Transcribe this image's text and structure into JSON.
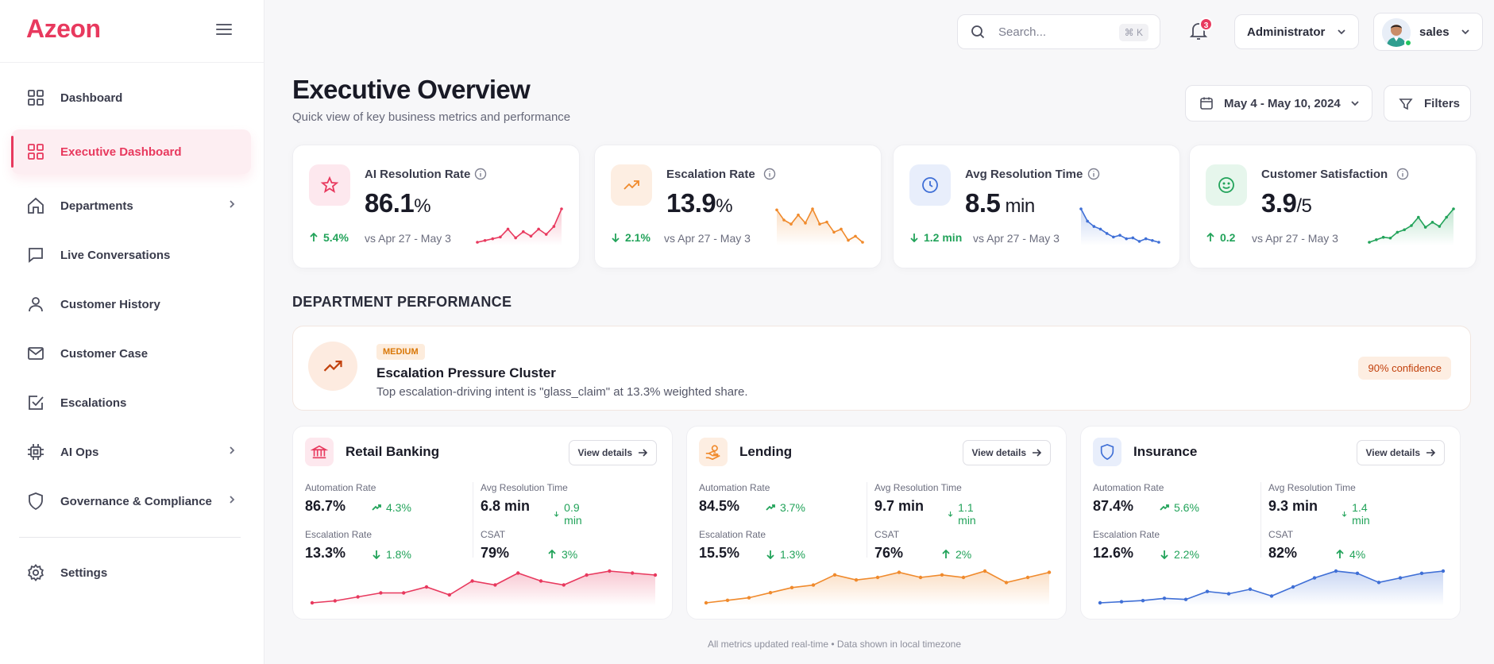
{
  "sidebar": {
    "logo": "Azeon",
    "items": [
      {
        "label": "Dashboard"
      },
      {
        "label": "Executive Dashboard"
      },
      {
        "label": "Departments"
      },
      {
        "label": "Live Conversations"
      },
      {
        "label": "Customer History"
      },
      {
        "label": "Customer Case"
      },
      {
        "label": "Escalations"
      },
      {
        "label": "AI Ops"
      },
      {
        "label": "Governance & Compliance"
      },
      {
        "label": "Settings"
      }
    ]
  },
  "topbar": {
    "search_placeholder": "Search...",
    "search_shortcut": "⌘ K",
    "notification_count": "3",
    "role": "Administrator",
    "user": "sales"
  },
  "header": {
    "title": "Executive Overview",
    "subtitle": "Quick view of key business metrics and performance",
    "date_range": "May 4 - May 10, 2024",
    "filters_label": "Filters"
  },
  "kpis": [
    {
      "title": "AI Resolution Rate",
      "value": "86.1",
      "unit": "%",
      "delta": "5.4%",
      "compare": "vs Apr 27 - May 3",
      "color": "#e8395e",
      "trend": [
        40,
        42,
        44,
        46,
        55,
        45,
        52,
        47,
        55,
        49,
        58,
        78
      ]
    },
    {
      "title": "Escalation Rate",
      "value": "13.9",
      "unit": "%",
      "delta": "2.1%",
      "compare": "vs Apr 27 - May 3",
      "color": "#f08a2c",
      "trend": [
        72,
        62,
        58,
        67,
        59,
        73,
        58,
        60,
        50,
        53,
        42,
        46,
        40
      ]
    },
    {
      "title": "Avg Resolution Time",
      "value": "8.5",
      "unit": " min",
      "delta": "1.2 min",
      "compare": "vs Apr 27 - May 3",
      "color": "#3f6fd6",
      "trend": [
        78,
        64,
        58,
        55,
        50,
        46,
        48,
        44,
        45,
        41,
        44,
        42,
        40
      ]
    },
    {
      "title": "Customer Satisfaction",
      "value": "3.9",
      "unit": "/5",
      "delta": "0.2",
      "compare": "vs Apr 27 - May 3",
      "color": "#22a35a",
      "trend": [
        40,
        43,
        46,
        45,
        52,
        55,
        60,
        70,
        58,
        64,
        59,
        70,
        80
      ]
    }
  ],
  "department_section": {
    "title": "DEPARTMENT PERFORMANCE",
    "insight": {
      "severity": "MEDIUM",
      "title": "Escalation Pressure Cluster",
      "description": "Top escalation-driving intent is \"glass_claim\" at 13.3% weighted share.",
      "confidence": "90% confidence"
    },
    "view_details_label": "View details",
    "labels": {
      "automation": "Automation Rate",
      "avg_time": "Avg Resolution Time",
      "escalation": "Escalation Rate",
      "csat": "CSAT"
    },
    "departments": [
      {
        "name": "Retail Banking",
        "color": "#e8395e",
        "icon": "bank-icon",
        "automation": "86.7%",
        "automation_delta": "4.3%",
        "avg_time": "6.8 min",
        "avg_time_delta": "0.9 min",
        "escalation": "13.3%",
        "escalation_delta": "1.8%",
        "csat": "79%",
        "csat_delta": "3%",
        "trend": [
          30,
          32,
          36,
          40,
          40,
          46,
          38,
          52,
          48,
          60,
          52,
          48,
          58,
          62,
          60,
          58
        ]
      },
      {
        "name": "Lending",
        "color": "#f08a2c",
        "icon": "hand-coin-icon",
        "automation": "84.5%",
        "automation_delta": "3.7%",
        "avg_time": "9.7 min",
        "avg_time_delta": "1.1 min",
        "escalation": "15.5%",
        "escalation_delta": "1.3%",
        "csat": "76%",
        "csat_delta": "2%",
        "trend": [
          30,
          32,
          34,
          38,
          42,
          44,
          52,
          48,
          50,
          54,
          50,
          52,
          50,
          55,
          46,
          50,
          54
        ]
      },
      {
        "name": "Insurance",
        "color": "#3f6fd6",
        "icon": "shield-icon",
        "automation": "87.4%",
        "automation_delta": "5.6%",
        "avg_time": "9.3 min",
        "avg_time_delta": "1.4 min",
        "escalation": "12.6%",
        "escalation_delta": "2.2%",
        "csat": "82%",
        "csat_delta": "4%",
        "trend": [
          30,
          31,
          32,
          34,
          33,
          40,
          38,
          42,
          36,
          44,
          52,
          58,
          56,
          48,
          52,
          56,
          58
        ]
      }
    ]
  },
  "footer": "All metrics updated real-time  •  Data shown in local timezone"
}
